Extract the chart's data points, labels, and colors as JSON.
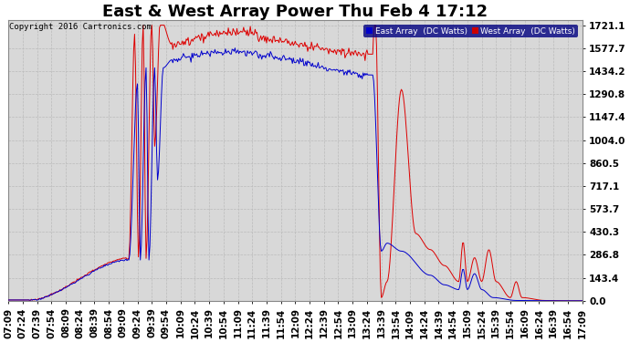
{
  "title": "East & West Array Power Thu Feb 4 17:12",
  "copyright": "Copyright 2016 Cartronics.com",
  "legend_east": "East Array  (DC Watts)",
  "legend_west": "West Array  (DC Watts)",
  "east_color": "#0000cc",
  "west_color": "#dd0000",
  "legend_east_bg": "#0000cc",
  "legend_west_bg": "#cc0000",
  "y_ticks": [
    0.0,
    143.4,
    286.8,
    430.3,
    573.7,
    717.1,
    860.5,
    1004.0,
    1147.4,
    1290.8,
    1434.2,
    1577.7,
    1721.1
  ],
  "ymax": 1721.1,
  "ymin": 0.0,
  "background_color": "#ffffff",
  "plot_bg_color": "#e8e8e8",
  "grid_color": "#bbbbbb",
  "title_fontsize": 13,
  "tick_fontsize": 7.5,
  "x_tick_labels": [
    "07:09",
    "07:24",
    "07:39",
    "07:54",
    "08:09",
    "08:24",
    "08:39",
    "08:54",
    "09:09",
    "09:24",
    "09:39",
    "09:54",
    "10:09",
    "10:24",
    "10:39",
    "10:54",
    "11:09",
    "11:24",
    "11:39",
    "11:54",
    "12:09",
    "12:24",
    "12:39",
    "12:54",
    "13:09",
    "13:24",
    "13:39",
    "13:54",
    "14:09",
    "14:24",
    "14:39",
    "14:54",
    "15:09",
    "15:24",
    "15:39",
    "15:54",
    "16:09",
    "16:24",
    "16:39",
    "16:54",
    "17:09"
  ]
}
